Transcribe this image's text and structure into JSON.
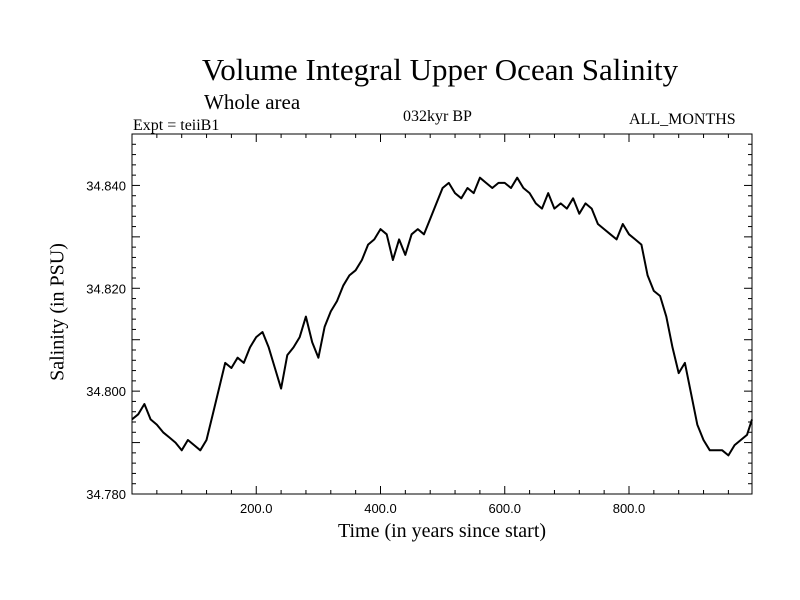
{
  "chart_data": {
    "type": "line",
    "title": "Volume Integral Upper Ocean Salinity",
    "subtitle": "Whole area",
    "experiment": "Expt = teiiB1",
    "period": "032kyr BP",
    "months": "ALL_MONTHS",
    "xlabel": "Time (in years since start)",
    "ylabel": "Salinity (in PSU)",
    "xlim": [
      0,
      998
    ],
    "ylim": [
      34.78,
      34.85
    ],
    "xticks": [
      200,
      400,
      600,
      800
    ],
    "xtick_labels": [
      "200.0",
      "400.0",
      "600.0",
      "800.0"
    ],
    "yticks": [
      34.78,
      34.8,
      34.82,
      34.84
    ],
    "ytick_labels": [
      "34.780",
      "34.800",
      "34.820",
      "34.840"
    ],
    "grid": false,
    "series": [
      {
        "x": [
          0,
          10,
          20,
          30,
          40,
          50,
          60,
          70,
          80,
          90,
          100,
          110,
          120,
          130,
          140,
          150,
          160,
          170,
          180,
          190,
          200,
          210,
          220,
          230,
          240,
          250,
          260,
          270,
          280,
          290,
          300,
          310,
          320,
          330,
          340,
          350,
          360,
          370,
          380,
          390,
          400,
          410,
          420,
          430,
          440,
          450,
          460,
          470,
          480,
          490,
          500,
          510,
          520,
          530,
          540,
          550,
          560,
          570,
          580,
          590,
          600,
          610,
          620,
          630,
          640,
          650,
          660,
          670,
          680,
          690,
          700,
          710,
          720,
          730,
          740,
          750,
          760,
          770,
          780,
          790,
          800,
          810,
          820,
          830,
          840,
          850,
          860,
          870,
          880,
          890,
          900,
          910,
          920,
          930,
          940,
          950,
          960,
          970,
          980,
          990,
          998
        ],
        "values": [
          34.7945,
          34.7955,
          34.7975,
          34.7945,
          34.7935,
          34.792,
          34.791,
          34.79,
          34.7885,
          34.7905,
          34.7895,
          34.7885,
          34.7905,
          34.7955,
          34.8005,
          34.8055,
          34.8045,
          34.8065,
          34.8055,
          34.8085,
          34.8105,
          34.8115,
          34.8085,
          34.8045,
          34.8005,
          34.807,
          34.8085,
          34.8105,
          34.8145,
          34.8095,
          34.8065,
          34.8125,
          34.8155,
          34.8175,
          34.8205,
          34.8225,
          34.8235,
          34.8255,
          34.8285,
          34.8295,
          34.8315,
          34.8305,
          34.8255,
          34.8295,
          34.8265,
          34.8305,
          34.8315,
          34.8305,
          34.8335,
          34.8365,
          34.8395,
          34.8405,
          34.8385,
          34.8375,
          34.8395,
          34.8385,
          34.8415,
          34.8405,
          34.8395,
          34.8405,
          34.8405,
          34.8395,
          34.8415,
          34.8395,
          34.8385,
          34.8365,
          34.8355,
          34.8385,
          34.8355,
          34.8365,
          34.8355,
          34.8375,
          34.8345,
          34.8365,
          34.8355,
          34.8325,
          34.8315,
          34.8305,
          34.8295,
          34.8325,
          34.8305,
          34.8295,
          34.8285,
          34.8225,
          34.8195,
          34.8185,
          34.8145,
          34.8085,
          34.8035,
          34.8055,
          34.7995,
          34.7935,
          34.7905,
          34.7885,
          34.7885,
          34.7885,
          34.7875,
          34.7895,
          34.7905,
          34.7915,
          34.7945
        ]
      }
    ]
  }
}
